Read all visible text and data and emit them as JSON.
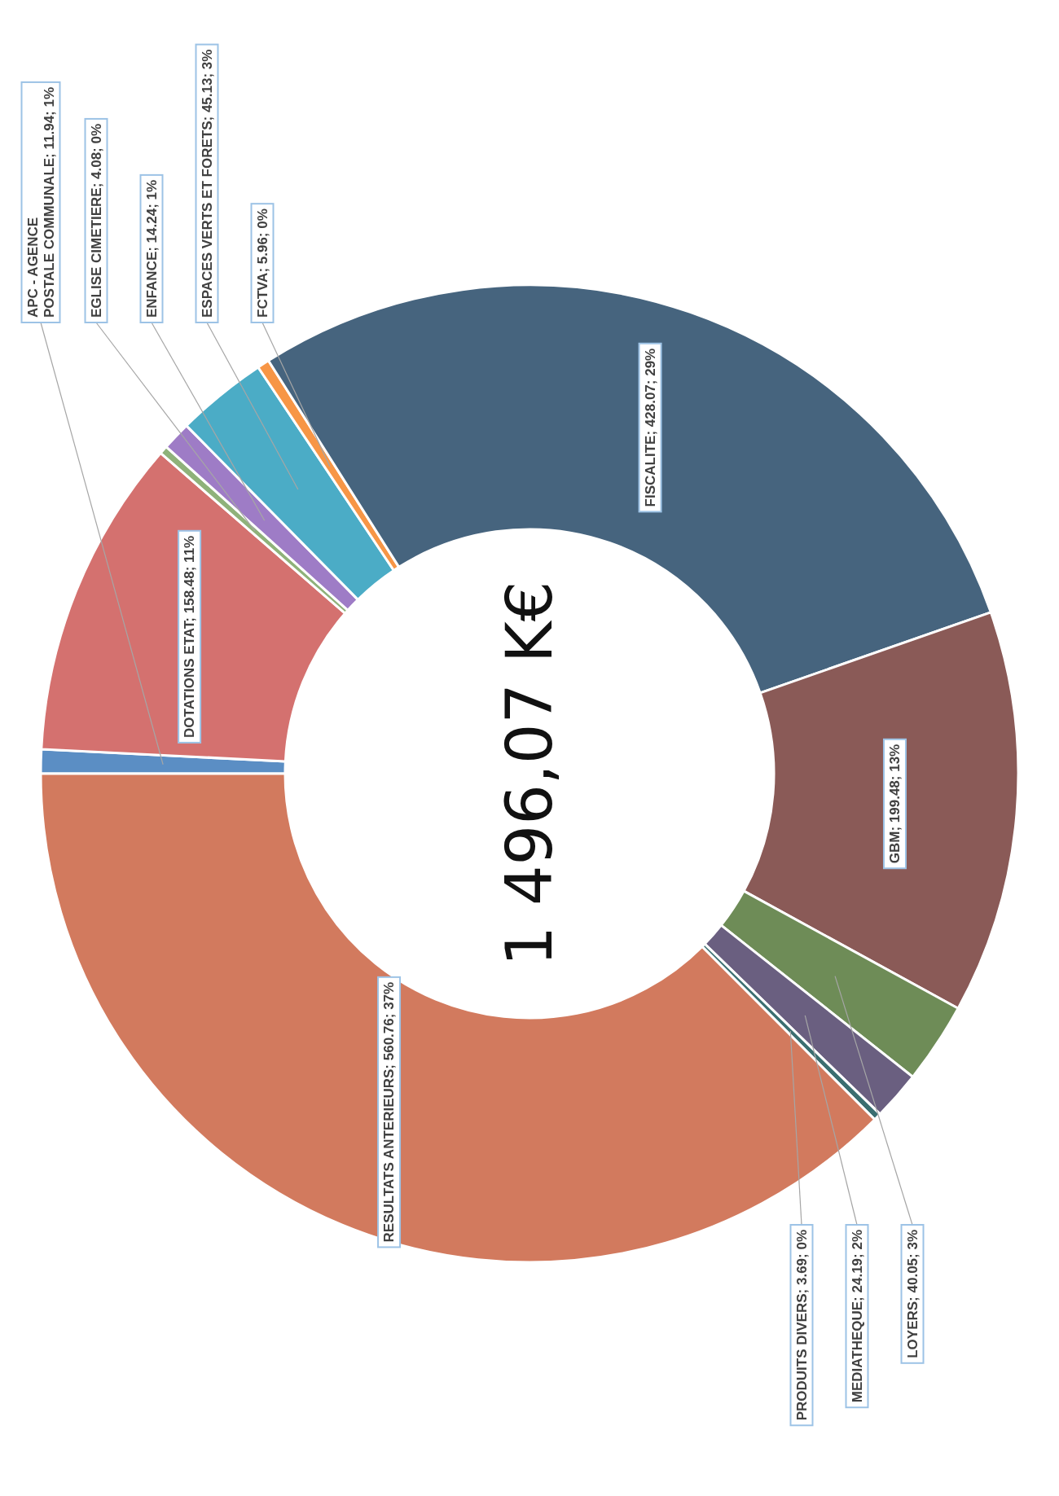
{
  "chart_data": {
    "type": "donut",
    "categories": [
      "APC - AGENCE POSTALE COMMUNALE",
      "DOTATIONS ETAT",
      "EGLISE CIMETIERE",
      "ENFANCE",
      "ESPACES VERTS ET FORETS",
      "FCTVA",
      "FISCALITE",
      "GBM",
      "LOYERS",
      "MEDIATHEQUE",
      "PRODUITS DIVERS",
      "RESULTATS ANTERIEURS"
    ],
    "values": [
      11.94,
      158.48,
      4.08,
      14.24,
      45.13,
      5.96,
      428.07,
      199.48,
      40.05,
      24.19,
      3.69,
      560.76
    ],
    "value_labels": [
      "11.94; 1%",
      "158.48; 11%",
      "4.08; 0%",
      "14.24; 1%",
      "45.13; 3%",
      "5.96; 0%",
      "428.07; 29%",
      "199.48; 13%",
      "40.05; 3%",
      "24.19; 2%",
      "3.69; 0%",
      "560.76; 37%"
    ],
    "colors": [
      "#5b8ec4",
      "#d4716f",
      "#8fb27a",
      "#9e7cc6",
      "#4bacc6",
      "#f79646",
      "#46647e",
      "#8a5a57",
      "#6e8c57",
      "#6a5f80",
      "#3a6e70",
      "#d27a5e"
    ],
    "annotations": [
      "1 496,07 K€"
    ]
  }
}
